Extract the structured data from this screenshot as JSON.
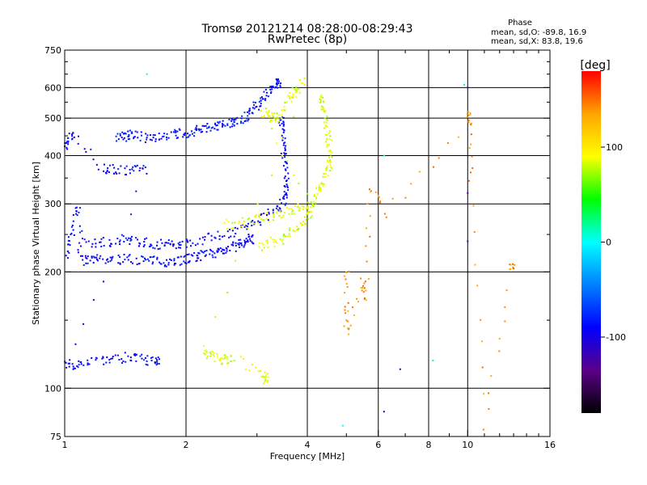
{
  "chart_data": {
    "type": "scatter",
    "title": "Tromsø 20121214 08:28:00-08:29:43",
    "subtitle": "RwPretec (8p)",
    "xlabel": "Frequency [MHz]",
    "ylabel": "Stationary phase Virtual Height [km]",
    "xscale": "log",
    "yscale": "log",
    "xlim": [
      1,
      16
    ],
    "ylim": [
      75,
      750
    ],
    "x_ticks": [
      1,
      2,
      4,
      6,
      8,
      10,
      16
    ],
    "x_tick_labels": [
      "1",
      "2",
      "4",
      "6",
      "8",
      "10",
      "16"
    ],
    "y_ticks": [
      75,
      100,
      200,
      300,
      400,
      500,
      600,
      750
    ],
    "y_tick_labels": [
      "75",
      "100",
      "200",
      "300",
      "400",
      "500",
      "600",
      "750"
    ],
    "x_gridlines": [
      1,
      2,
      4,
      6,
      8,
      10
    ],
    "y_gridlines": [
      100,
      200,
      300,
      400,
      500,
      600
    ],
    "grid": true,
    "stats": {
      "heading": "Phase",
      "line1": "mean, sd,O: -89.8, 16.9",
      "line2": "mean, sd,X:  83.8, 19.6"
    },
    "colorbar": {
      "label": "[deg]",
      "range": [
        -180,
        180
      ],
      "ticks": [
        100,
        0,
        -100
      ],
      "tick_labels": [
        "100",
        "0",
        "-100"
      ],
      "colors": [
        "#000000",
        "#5a0088",
        "#0000ff",
        "#0080ff",
        "#00ffff",
        "#00ff00",
        "#ffff00",
        "#ffa500",
        "#ff0000"
      ]
    },
    "traces": [
      {
        "name": "",
        "phase": -90,
        "points": [
          [
            1.0,
            210
          ],
          [
            1.02,
            235
          ],
          [
            1.05,
            262
          ],
          [
            1.08,
            300
          ],
          [
            1.1,
            215
          ],
          [
            1.15,
            214
          ],
          [
            1.2,
            215
          ],
          [
            1.3,
            215
          ],
          [
            1.4,
            216
          ],
          [
            1.5,
            216
          ],
          [
            1.6,
            214
          ],
          [
            1.7,
            213
          ],
          [
            1.8,
            213
          ],
          [
            1.9,
            214
          ],
          [
            2.0,
            216
          ],
          [
            2.1,
            218
          ],
          [
            2.2,
            220
          ],
          [
            2.3,
            223
          ],
          [
            2.4,
            226
          ],
          [
            2.5,
            229
          ],
          [
            2.6,
            232
          ],
          [
            2.7,
            235
          ],
          [
            2.8,
            239
          ],
          [
            2.9,
            243
          ]
        ]
      },
      {
        "name": "",
        "phase": -90,
        "points": [
          [
            1.1,
            236
          ],
          [
            1.2,
            238
          ],
          [
            1.3,
            240
          ],
          [
            1.4,
            241
          ],
          [
            1.5,
            240
          ],
          [
            1.6,
            238
          ],
          [
            1.7,
            236
          ],
          [
            1.8,
            235
          ],
          [
            1.9,
            236
          ],
          [
            2.0,
            238
          ],
          [
            2.2,
            243
          ],
          [
            2.4,
            248
          ],
          [
            2.6,
            254
          ],
          [
            2.8,
            262
          ],
          [
            3.0,
            270
          ],
          [
            3.2,
            280
          ],
          [
            3.4,
            292
          ],
          [
            3.5,
            305
          ],
          [
            3.55,
            325
          ],
          [
            3.55,
            350
          ],
          [
            3.52,
            380
          ],
          [
            3.5,
            410
          ],
          [
            3.48,
            450
          ],
          [
            3.45,
            490
          ]
        ]
      },
      {
        "name": "",
        "phase": -85,
        "points": [
          [
            1.35,
            450
          ],
          [
            1.4,
            448
          ],
          [
            1.45,
            455
          ],
          [
            1.5,
            450
          ],
          [
            1.6,
            446
          ],
          [
            1.7,
            448
          ],
          [
            1.8,
            452
          ],
          [
            1.9,
            455
          ],
          [
            2.0,
            458
          ],
          [
            2.1,
            463
          ],
          [
            2.2,
            468
          ],
          [
            2.3,
            472
          ],
          [
            2.4,
            477
          ],
          [
            2.5,
            482
          ],
          [
            2.6,
            488
          ],
          [
            2.7,
            495
          ],
          [
            2.8,
            505
          ],
          [
            2.9,
            520
          ],
          [
            3.0,
            540
          ],
          [
            3.1,
            560
          ],
          [
            3.2,
            580
          ],
          [
            3.3,
            600
          ],
          [
            3.4,
            615
          ]
        ]
      },
      {
        "name": "",
        "phase": -90,
        "points": [
          [
            1.0,
            420
          ],
          [
            1.02,
            440
          ],
          [
            1.05,
            460
          ],
          [
            1.25,
            370
          ],
          [
            1.3,
            368
          ],
          [
            1.4,
            368
          ],
          [
            1.5,
            367
          ],
          [
            1.6,
            368
          ],
          [
            1.0,
            115
          ],
          [
            1.05,
            115
          ],
          [
            1.1,
            116
          ],
          [
            1.2,
            120
          ],
          [
            1.3,
            118
          ],
          [
            1.4,
            120
          ],
          [
            1.5,
            120
          ],
          [
            1.6,
            118
          ],
          [
            1.7,
            117
          ]
        ]
      },
      {
        "name": "",
        "phase": 85,
        "points": [
          [
            3.0,
            232
          ],
          [
            3.2,
            236
          ],
          [
            3.4,
            242
          ],
          [
            3.6,
            250
          ],
          [
            3.8,
            260
          ],
          [
            4.0,
            275
          ],
          [
            4.1,
            290
          ],
          [
            4.2,
            310
          ],
          [
            4.3,
            330
          ],
          [
            4.4,
            350
          ],
          [
            4.5,
            370
          ],
          [
            4.55,
            390
          ],
          [
            4.55,
            420
          ],
          [
            4.5,
            450
          ],
          [
            4.45,
            480
          ],
          [
            4.4,
            520
          ],
          [
            4.35,
            560
          ]
        ]
      },
      {
        "name": "",
        "phase": 85,
        "points": [
          [
            2.5,
            265
          ],
          [
            2.7,
            268
          ],
          [
            2.9,
            272
          ],
          [
            3.1,
            275
          ],
          [
            3.3,
            280
          ],
          [
            3.5,
            285
          ],
          [
            3.7,
            290
          ],
          [
            3.9,
            295
          ],
          [
            4.1,
            300
          ],
          [
            3.1,
            520
          ],
          [
            3.2,
            510
          ],
          [
            3.3,
            505
          ],
          [
            3.4,
            500
          ],
          [
            3.6,
            560
          ],
          [
            3.7,
            580
          ],
          [
            3.8,
            600
          ],
          [
            3.9,
            620
          ],
          [
            2.2,
            125
          ],
          [
            2.3,
            122
          ],
          [
            2.4,
            120
          ],
          [
            2.5,
            118
          ],
          [
            2.6,
            120
          ],
          [
            3.1,
            108
          ],
          [
            3.15,
            106
          ]
        ]
      },
      {
        "name": "",
        "phase": 10,
        "points": [
          [
            1.6,
            650
          ],
          [
            4.9,
            80
          ],
          [
            6.2,
            400
          ],
          [
            8.2,
            118
          ],
          [
            9.8,
            610
          ]
        ]
      },
      {
        "name": "",
        "phase": 140,
        "points": [
          [
            5.0,
            205
          ],
          [
            5.0,
            160
          ],
          [
            5.0,
            140
          ],
          [
            5.5,
            190
          ],
          [
            5.6,
            170
          ],
          [
            5.7,
            330
          ],
          [
            6.2,
            285
          ],
          [
            10.1,
            480
          ],
          [
            10.1,
            520
          ],
          [
            10.2,
            350
          ],
          [
            11.0,
            80
          ],
          [
            12.9,
            205
          ]
        ]
      },
      {
        "name": "",
        "phase": -110,
        "points": [
          [
            6.2,
            87
          ],
          [
            6.8,
            112
          ],
          [
            10.0,
            320
          ],
          [
            10.0,
            240
          ],
          [
            10.0,
            600
          ]
        ]
      }
    ]
  }
}
